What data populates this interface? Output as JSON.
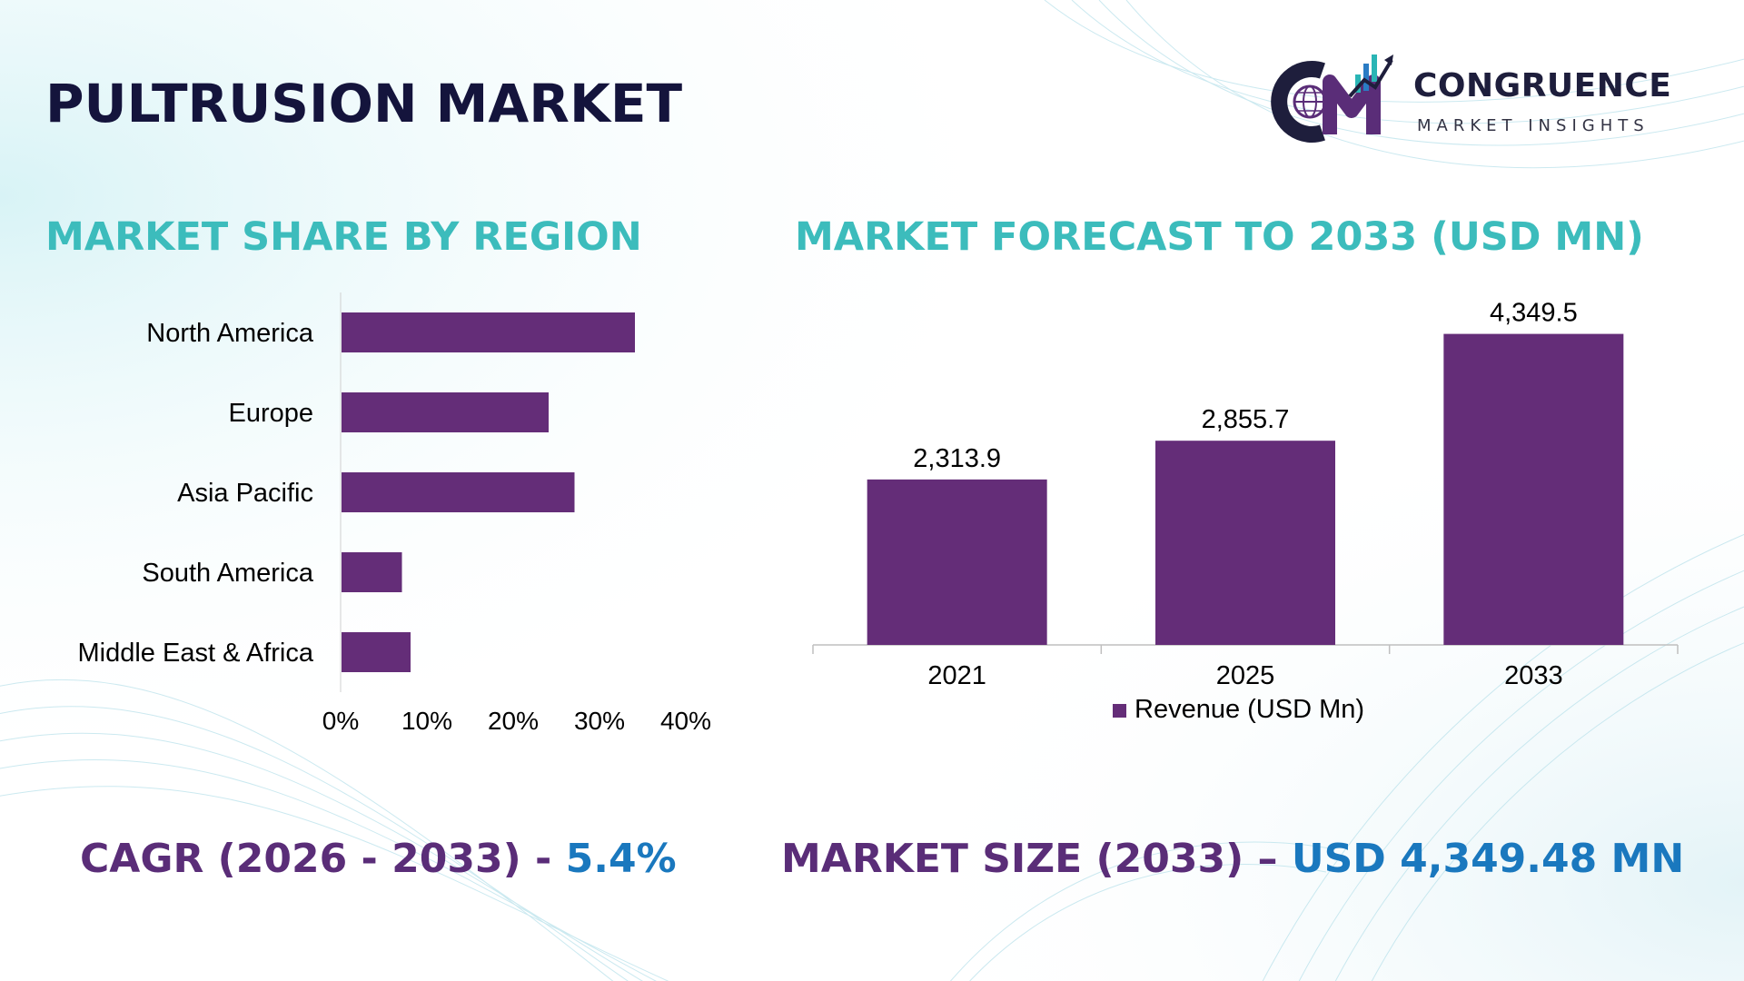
{
  "title": "PULTRUSION MARKET",
  "logo": {
    "name": "CONGRUENCE",
    "subtitle": "MARKET INSIGHTS",
    "mark_text": "CM"
  },
  "colors": {
    "bar": "#642d78",
    "section_title": "#3cbcbc",
    "title": "#14143c",
    "footer_label": "#5a2d78",
    "footer_value": "#1a78be",
    "logo_teal": "#2ab5b5",
    "logo_purple": "#5a2d78"
  },
  "sections": {
    "left_title": "MARKET SHARE BY REGION",
    "right_title": "MARKET FORECAST TO 2033 (USD MN)"
  },
  "chart_data": [
    {
      "type": "bar",
      "orientation": "horizontal",
      "categories": [
        "North America",
        "Europe",
        "Asia Pacific",
        "South America",
        "Middle East & Africa"
      ],
      "values": [
        34,
        24,
        27,
        7,
        8
      ],
      "xlim": [
        0,
        40
      ],
      "xticks": [
        "0%",
        "10%",
        "20%",
        "30%",
        "40%"
      ],
      "title": "MARKET SHARE BY REGION",
      "grid": false
    },
    {
      "type": "bar",
      "categories": [
        "2021",
        "2025",
        "2033"
      ],
      "series": [
        {
          "name": "Revenue (USD Mn)",
          "values": [
            2313.9,
            2855.7,
            4349.5
          ],
          "labels": [
            "2,313.9",
            "2,855.7",
            "4,349.5"
          ]
        }
      ],
      "ylim": [
        0,
        4700
      ],
      "title": "MARKET FORECAST TO 2033 (USD MN)",
      "legend": "bottom",
      "grid": false
    }
  ],
  "footer": {
    "cagr_label": "CAGR (2026 - 2033) - ",
    "cagr_value": "5.4%",
    "size_label": "MARKET SIZE (2033) – ",
    "size_value": "USD 4,349.48 MN"
  }
}
